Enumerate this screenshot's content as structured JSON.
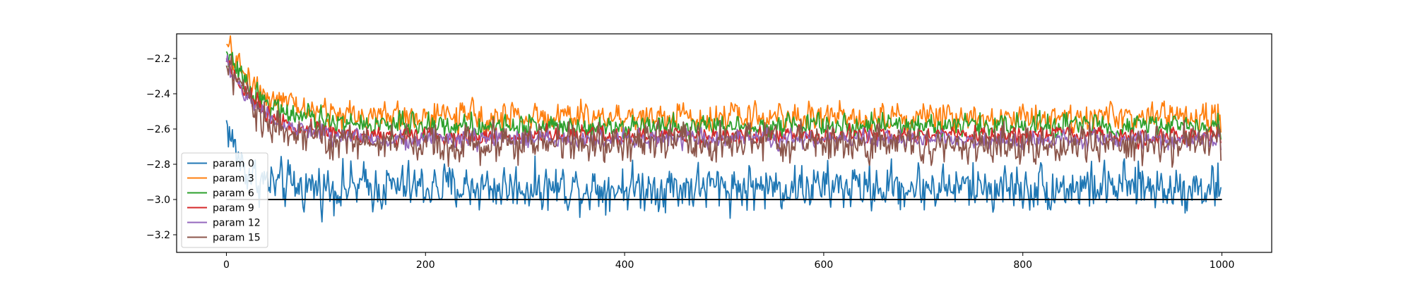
{
  "chart_data": {
    "type": "line",
    "title": "",
    "xlabel": "",
    "ylabel": "",
    "xlim": [
      -50,
      1050
    ],
    "ylim": [
      -3.3,
      -2.06
    ],
    "xticks": [
      0,
      200,
      400,
      600,
      800,
      1000
    ],
    "xtick_labels": [
      "0",
      "200",
      "400",
      "600",
      "800",
      "1000"
    ],
    "yticks": [
      -3.2,
      -3.0,
      -2.8,
      -2.6,
      -2.4,
      -2.2
    ],
    "ytick_labels": [
      "−3.2",
      "−3.0",
      "−2.8",
      "−2.6",
      "−2.4",
      "−2.2"
    ],
    "grid": false,
    "legend_position": "lower-left",
    "n_points": 1000,
    "reference_line": {
      "y": -3.0,
      "x_range": [
        0,
        1000
      ],
      "color": "#000000"
    },
    "series": [
      {
        "name": "param 0",
        "color": "#1f77b4",
        "start": -2.55,
        "level": -2.93,
        "decay": 15,
        "noise": 0.09,
        "final": -2.93
      },
      {
        "name": "param 3",
        "color": "#ff7f0e",
        "start": -2.12,
        "level": -2.53,
        "decay": 35,
        "noise": 0.055,
        "final": -2.62
      },
      {
        "name": "param 6",
        "color": "#2ca02c",
        "start": -2.16,
        "level": -2.58,
        "decay": 35,
        "noise": 0.045,
        "final": -2.66
      },
      {
        "name": "param 9",
        "color": "#d62728",
        "start": -2.2,
        "level": -2.64,
        "decay": 35,
        "noise": 0.035,
        "final": -2.68
      },
      {
        "name": "param 12",
        "color": "#9467bd",
        "start": -2.22,
        "level": -2.66,
        "decay": 35,
        "noise": 0.035,
        "final": -2.72
      },
      {
        "name": "param 15",
        "color": "#8c564b",
        "start": -2.24,
        "level": -2.68,
        "decay": 35,
        "noise": 0.075,
        "final": -2.78
      }
    ]
  }
}
